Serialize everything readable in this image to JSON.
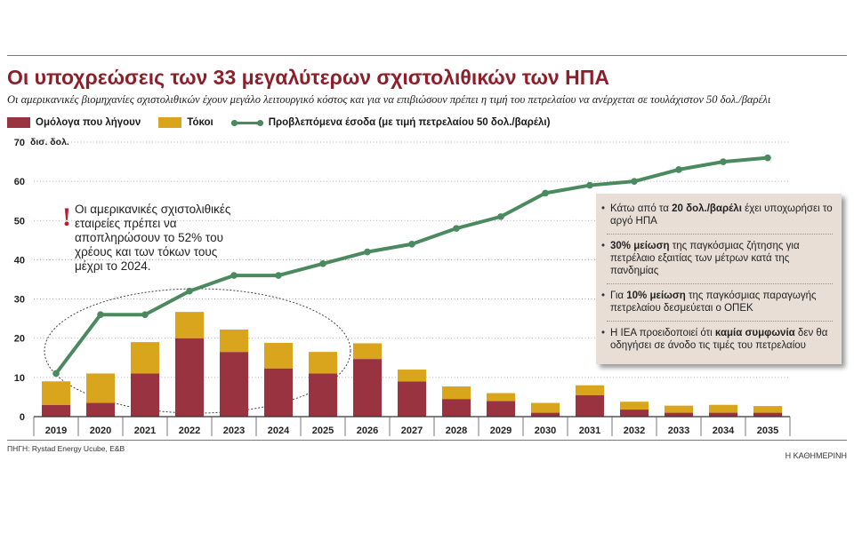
{
  "header": {
    "title": "Οι υποχρεώσεις των 33 μεγαλύτερων σχιστολιθικών των ΗΠΑ",
    "subtitle": "Οι αμερικανικές βιομηχανίες σχιστολιθικών έχουν μεγάλο λειτουργικό κόστος και για να επιβιώσουν πρέπει η τιμή του πετρελαίου να ανέρχεται σε τουλάχιστον 50 δολ./βαρέλι"
  },
  "legend": {
    "bonds": "Ομόλογα που λήγουν",
    "interest": "Τόκοι",
    "revenue": "Προβλεπόμενα έσοδα (με τιμή πετρελαίου 50 δολ./βαρέλι)"
  },
  "chart_data": {
    "type": "bar",
    "stacked": true,
    "categories": [
      "2019",
      "2020",
      "2021",
      "2022",
      "2023",
      "2024",
      "2025",
      "2026",
      "2027",
      "2028",
      "2029",
      "2030",
      "2031",
      "2032",
      "2033",
      "2034",
      "2035"
    ],
    "series": [
      {
        "name": "Ομόλογα που λήγουν",
        "type": "bar",
        "color": "#993340",
        "values": [
          3,
          3.5,
          11,
          20,
          16.5,
          12.3,
          11,
          14.7,
          9,
          4.5,
          4,
          1,
          5.5,
          1.8,
          1,
          1,
          1
        ]
      },
      {
        "name": "Τόκοι",
        "type": "bar",
        "color": "#d9a51c",
        "values": [
          6,
          7.5,
          8,
          6.7,
          5.7,
          6.5,
          5.5,
          4,
          3,
          3.2,
          2,
          2.5,
          2.5,
          2,
          1.8,
          2,
          1.7
        ]
      },
      {
        "name": "Προβλεπόμενα έσοδα (με τιμή πετρελαίου 50 δολ./βαρέλι)",
        "type": "line",
        "color": "#4b8a5f",
        "values": [
          11,
          26,
          26,
          32,
          36,
          36,
          39,
          42,
          44,
          48,
          51,
          57,
          59,
          60,
          63,
          65,
          66
        ]
      }
    ],
    "ylabel": "δισ. δολ.",
    "ylim": [
      0,
      70
    ],
    "yticks": [
      0,
      10,
      20,
      30,
      40,
      50,
      60,
      70
    ],
    "grid": true,
    "legend_position": "top-left"
  },
  "note": "Οι αμερικανικές σχιστολιθικές εταιρείες πρέπει να αποπληρώσουν το 52% του χρέους και των τόκων τους μέχρι το 2024.",
  "infobox": [
    {
      "pre": "Κάτω από τα ",
      "bold": "20 δολ./βαρέλι",
      "post": " έχει υποχωρήσει το αργό ΗΠΑ"
    },
    {
      "pre": "",
      "bold": "30% μείωση",
      "post": " της παγκόσμιας ζήτησης για πετρέλαιο εξαιτίας των μέτρων κατά της πανδημίας"
    },
    {
      "pre": "Για ",
      "bold": "10% μείωση",
      "post": " της παγκόσμιας παραγωγής πετρελαίου δεσμεύεται ο ΟΠΕΚ"
    },
    {
      "pre": "Η IEA προειδοποιεί ότι ",
      "bold": "καμία συμφωνία",
      "post": " δεν θα οδηγήσει σε άνοδο τις τιμές του πετρελαίου"
    }
  ],
  "source": "ΠΗΓΗ: Rystad Energy Ucube, E&B",
  "brand": "Η ΚΑΘΗΜΕΡΙΝΗ"
}
